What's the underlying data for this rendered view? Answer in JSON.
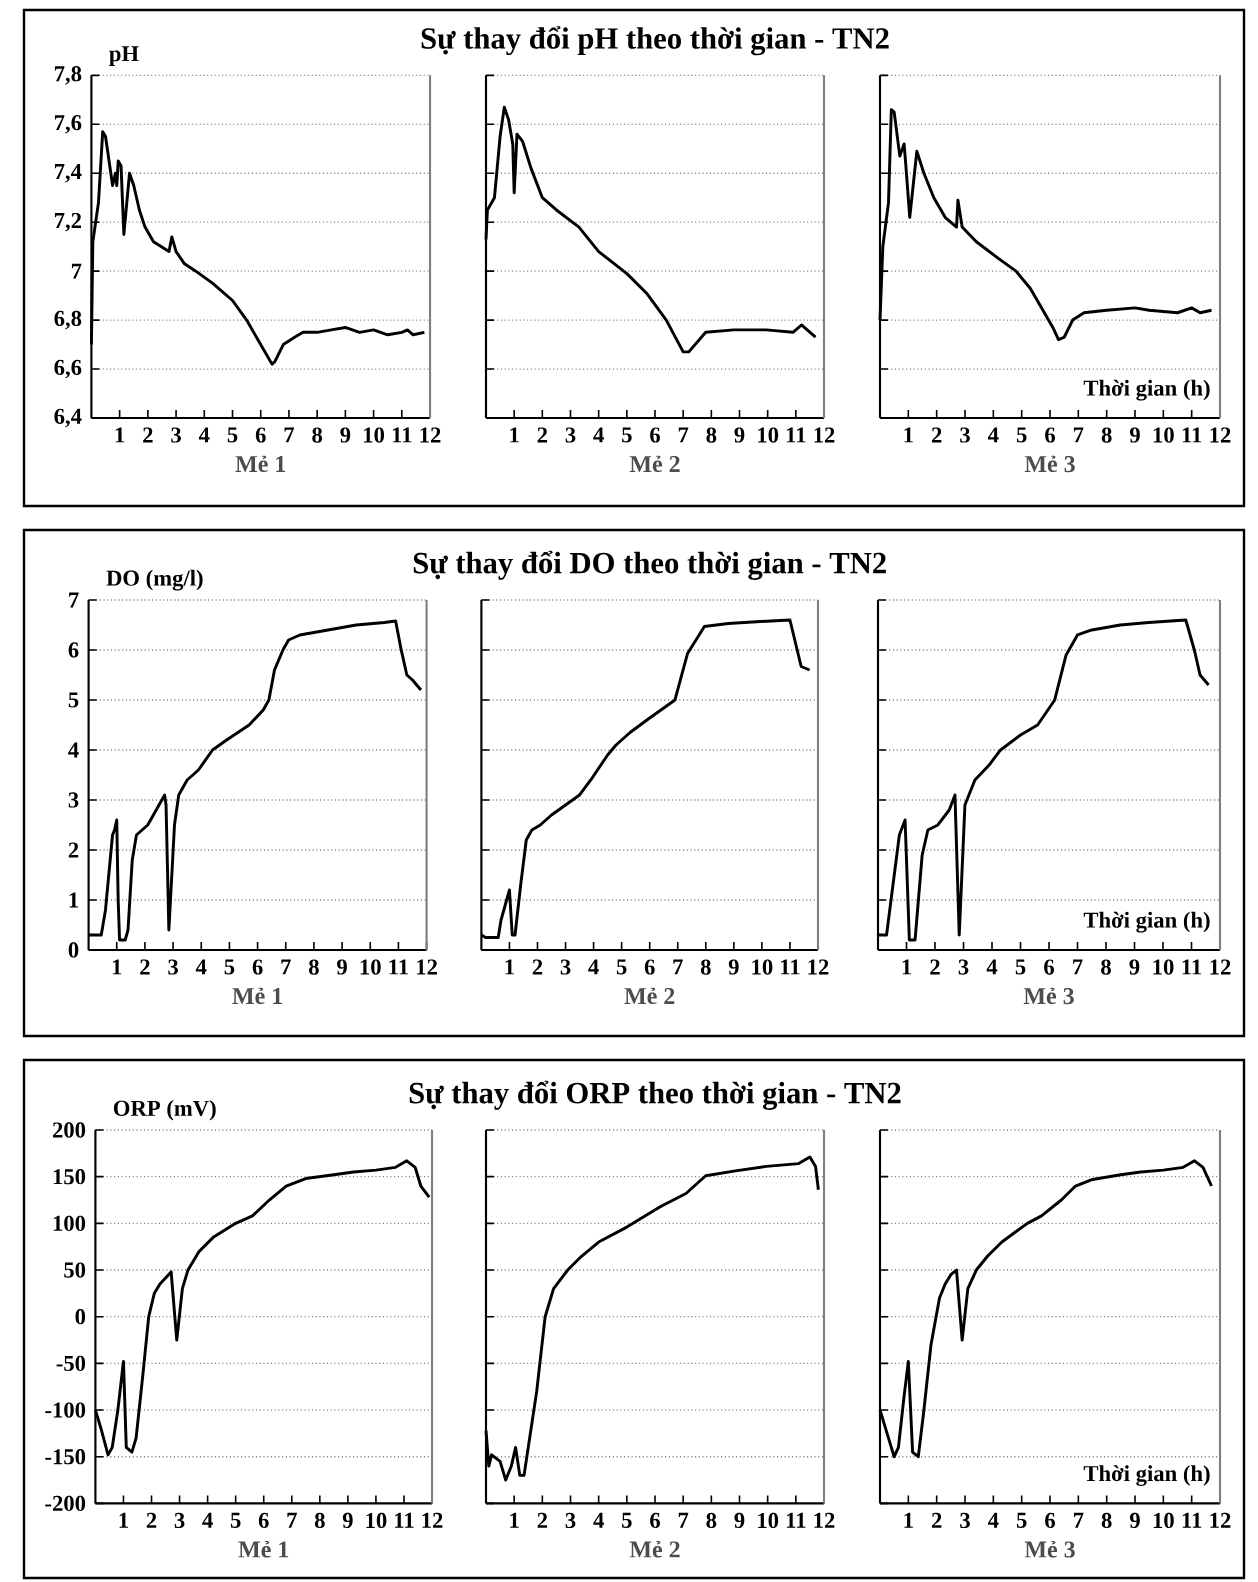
{
  "chart_data": [
    {
      "type": "line",
      "ylabel": "pH",
      "xlabel": "Mẻ 1",
      "color": "#000000",
      "grid": "y",
      "xlim": [
        0,
        12
      ],
      "ylim": [
        6.4,
        7.8
      ],
      "xticks": [
        1,
        2,
        3,
        4,
        5,
        6,
        7,
        8,
        9,
        10,
        11,
        12
      ],
      "yticks": [
        {
          "value": 6.4,
          "label": "6,4"
        },
        {
          "value": 6.6,
          "label": "6,6"
        },
        {
          "value": 6.8,
          "label": "6,8"
        },
        7,
        {
          "value": 7.2,
          "label": "7,2"
        },
        {
          "value": 7.4,
          "label": "7,4"
        },
        {
          "value": 7.6,
          "label": "7,6"
        },
        {
          "value": 7.8,
          "label": "7,8"
        }
      ],
      "ref_lines": [
        {
          "axis": "x",
          "value": 12,
          "color": "#808080"
        }
      ],
      "x": [
        0,
        0.05,
        0.25,
        0.4,
        0.5,
        0.75,
        0.85,
        0.9,
        0.95,
        1.05,
        1.15,
        1.35,
        1.5,
        1.7,
        1.9,
        2.2,
        2.75,
        2.85,
        3.0,
        3.3,
        3.7,
        4.3,
        5,
        5.5,
        5.9,
        6.2,
        6.4,
        6.5,
        6.8,
        7.2,
        7.5,
        8,
        8.5,
        9,
        9.5,
        10,
        10.5,
        11,
        11.2,
        11.4,
        11.8
      ],
      "values": [
        6.7,
        7.12,
        7.28,
        7.57,
        7.55,
        7.35,
        7.4,
        7.35,
        7.45,
        7.43,
        7.15,
        7.4,
        7.35,
        7.25,
        7.18,
        7.12,
        7.08,
        7.14,
        7.08,
        7.03,
        7.0,
        6.95,
        6.88,
        6.8,
        6.72,
        6.66,
        6.62,
        6.63,
        6.7,
        6.73,
        6.75,
        6.75,
        6.76,
        6.77,
        6.75,
        6.76,
        6.74,
        6.75,
        6.76,
        6.74,
        6.75
      ]
    },
    {
      "type": "line",
      "title": "Sự thay đổi pH theo thời gian - TN2",
      "xlabel": "Mẻ 2",
      "color": "#000000",
      "grid": "y",
      "tick_labels": "x",
      "xlim": [
        0,
        12
      ],
      "ylim": [
        6.4,
        7.8
      ],
      "xticks": [
        1,
        2,
        3,
        4,
        5,
        6,
        7,
        8,
        9,
        10,
        11,
        12
      ],
      "yticks": [
        6.4,
        6.6,
        6.8,
        7,
        7.2,
        7.4,
        7.6,
        7.8
      ],
      "ref_lines": [
        {
          "axis": "x",
          "value": 12,
          "color": "#808080"
        }
      ],
      "x": [
        0,
        0.05,
        0.3,
        0.5,
        0.65,
        0.8,
        0.95,
        1.0,
        1.1,
        1.3,
        1.6,
        2,
        2.5,
        3.3,
        4.0,
        5.0,
        5.7,
        6.4,
        7.0,
        7.2,
        7.8,
        8.8,
        9.95,
        10.9,
        11.2,
        11.7
      ],
      "values": [
        7.13,
        7.25,
        7.3,
        7.55,
        7.67,
        7.62,
        7.52,
        7.32,
        7.56,
        7.53,
        7.42,
        7.3,
        7.25,
        7.18,
        7.08,
        6.99,
        6.91,
        6.8,
        6.67,
        6.67,
        6.75,
        6.76,
        6.76,
        6.75,
        6.78,
        6.73
      ]
    },
    {
      "type": "line",
      "xlabel": "Mẻ 3",
      "annotations": [
        "Thời gian (h)"
      ],
      "color": "#000000",
      "grid": "y",
      "tick_labels": "x",
      "xlim": [
        0,
        12
      ],
      "ylim": [
        6.4,
        7.8
      ],
      "xticks": [
        1,
        2,
        3,
        4,
        5,
        6,
        7,
        8,
        9,
        10,
        11,
        12
      ],
      "yticks": [
        6.4,
        6.6,
        6.8,
        7,
        7.2,
        7.4,
        7.6,
        7.8
      ],
      "ref_lines": [
        {
          "axis": "x",
          "value": 12,
          "color": "#808080"
        }
      ],
      "x": [
        0,
        0.1,
        0.3,
        0.4,
        0.5,
        0.7,
        0.85,
        0.9,
        1.05,
        1.3,
        1.55,
        1.9,
        2.3,
        2.7,
        2.75,
        2.9,
        3.4,
        4.2,
        4.8,
        5.3,
        5.7,
        6.1,
        6.3,
        6.5,
        6.8,
        7.2,
        8,
        9,
        9.5,
        10.5,
        11,
        11.3,
        11.7
      ],
      "values": [
        6.8,
        7.1,
        7.28,
        7.66,
        7.65,
        7.47,
        7.52,
        7.45,
        7.22,
        7.49,
        7.4,
        7.3,
        7.22,
        7.18,
        7.29,
        7.18,
        7.12,
        7.05,
        7.0,
        6.93,
        6.85,
        6.77,
        6.72,
        6.73,
        6.8,
        6.83,
        6.84,
        6.85,
        6.84,
        6.83,
        6.85,
        6.83,
        6.84
      ]
    },
    {
      "type": "line",
      "ylabel": "DO (mg/l)",
      "xlabel": "Mẻ 1",
      "color": "#000000",
      "grid": "y",
      "xlim": [
        0,
        12
      ],
      "ylim": [
        0,
        7
      ],
      "xticks": [
        1,
        2,
        3,
        4,
        5,
        6,
        7,
        8,
        9,
        10,
        11,
        12
      ],
      "yticks": [
        0,
        1,
        2,
        3,
        4,
        5,
        6,
        7
      ],
      "ref_lines": [
        {
          "axis": "x",
          "value": 12,
          "color": "#808080"
        }
      ],
      "x": [
        0,
        0.45,
        0.6,
        0.85,
        0.92,
        1.0,
        1.05,
        1.1,
        1.3,
        1.4,
        1.55,
        1.7,
        1.9,
        2.1,
        2.3,
        2.5,
        2.7,
        2.75,
        2.85,
        3.05,
        3.2,
        3.5,
        3.9,
        4.4,
        4.9,
        5.3,
        5.7,
        6.2,
        6.4,
        6.6,
        6.9,
        7.1,
        7.5,
        8.5,
        9.5,
        10.5,
        10.9,
        11.1,
        11.3,
        11.5,
        11.8
      ],
      "values": [
        0.3,
        0.3,
        0.8,
        2.3,
        2.4,
        2.6,
        1.0,
        0.2,
        0.2,
        0.4,
        1.8,
        2.3,
        2.4,
        2.5,
        2.7,
        2.9,
        3.1,
        2.9,
        0.4,
        2.5,
        3.1,
        3.4,
        3.6,
        4.0,
        4.2,
        4.35,
        4.5,
        4.8,
        5.0,
        5.6,
        6.0,
        6.2,
        6.3,
        6.4,
        6.5,
        6.55,
        6.58,
        6.0,
        5.5,
        5.4,
        5.2
      ]
    },
    {
      "type": "line",
      "title": "Sự thay đổi DO theo thời gian - TN2",
      "xlabel": "Mẻ 2",
      "color": "#000000",
      "grid": "y",
      "tick_labels": "x",
      "xlim": [
        0,
        12
      ],
      "ylim": [
        0,
        7
      ],
      "xticks": [
        1,
        2,
        3,
        4,
        5,
        6,
        7,
        8,
        9,
        10,
        11,
        12
      ],
      "yticks": [
        0,
        1,
        2,
        3,
        4,
        5,
        6,
        7
      ],
      "ref_lines": [
        {
          "axis": "x",
          "value": 12,
          "color": "#808080"
        }
      ],
      "x": [
        0,
        0.15,
        0.6,
        0.7,
        1.0,
        1.1,
        1.2,
        1.4,
        1.6,
        1.8,
        2.1,
        2.5,
        3,
        3.5,
        3.9,
        4.5,
        4.8,
        5.3,
        5.9,
        6.9,
        7.35,
        7.95,
        8.8,
        9.95,
        11.0,
        11.4,
        11.7
      ],
      "values": [
        0.3,
        0.25,
        0.25,
        0.6,
        1.2,
        0.3,
        0.3,
        1.3,
        2.2,
        2.4,
        2.5,
        2.7,
        2.9,
        3.1,
        3.4,
        3.9,
        4.1,
        4.35,
        4.6,
        5.0,
        5.93,
        6.47,
        6.53,
        6.57,
        6.6,
        5.67,
        5.6
      ]
    },
    {
      "type": "line",
      "xlabel": "Mẻ 3",
      "annotations": [
        "Thời gian (h)"
      ],
      "color": "#000000",
      "grid": "y",
      "tick_labels": "x",
      "xlim": [
        0,
        12
      ],
      "ylim": [
        0,
        7
      ],
      "xticks": [
        1,
        2,
        3,
        4,
        5,
        6,
        7,
        8,
        9,
        10,
        11,
        12
      ],
      "yticks": [
        0,
        1,
        2,
        3,
        4,
        5,
        6,
        7
      ],
      "ref_lines": [
        {
          "axis": "x",
          "value": 12,
          "color": "#808080"
        }
      ],
      "x": [
        0,
        0.3,
        0.75,
        0.95,
        1.1,
        1.3,
        1.55,
        1.75,
        2.1,
        2.5,
        2.7,
        2.85,
        3.05,
        3.4,
        3.9,
        4.3,
        5.0,
        5.6,
        6.2,
        6.6,
        7.0,
        7.5,
        8.5,
        9.5,
        10.8,
        11.1,
        11.3,
        11.6
      ],
      "values": [
        0.3,
        0.3,
        2.3,
        2.6,
        0.2,
        0.2,
        1.9,
        2.4,
        2.5,
        2.8,
        3.1,
        0.3,
        2.9,
        3.4,
        3.7,
        4.0,
        4.3,
        4.5,
        5.0,
        5.9,
        6.3,
        6.4,
        6.5,
        6.55,
        6.6,
        6.0,
        5.5,
        5.3
      ]
    },
    {
      "type": "line",
      "ylabel": "ORP (mV)",
      "xlabel": "Mẻ 1",
      "color": "#000000",
      "grid": "y",
      "xlim": [
        0,
        12
      ],
      "ylim": [
        -200,
        200
      ],
      "xticks": [
        1,
        2,
        3,
        4,
        5,
        6,
        7,
        8,
        9,
        10,
        11,
        12
      ],
      "yticks": [
        -200,
        -150,
        -100,
        -50,
        0,
        50,
        100,
        150,
        200
      ],
      "ref_lines": [
        {
          "axis": "x",
          "value": 12,
          "color": "#808080"
        }
      ],
      "x": [
        0,
        0.2,
        0.45,
        0.6,
        0.8,
        1.0,
        1.1,
        1.3,
        1.45,
        1.7,
        1.9,
        2.1,
        2.3,
        2.7,
        2.9,
        3.1,
        3.3,
        3.7,
        4.2,
        5.0,
        5.6,
        6.2,
        6.8,
        7.5,
        8.5,
        9.2,
        10,
        10.7,
        11.1,
        11.4,
        11.6,
        11.9
      ],
      "values": [
        -100,
        -120,
        -148,
        -140,
        -100,
        -48,
        -140,
        -145,
        -130,
        -60,
        0,
        25,
        35,
        48,
        -25,
        30,
        50,
        70,
        85,
        100,
        108,
        125,
        140,
        148,
        152,
        155,
        157,
        160,
        167,
        160,
        140,
        128
      ]
    },
    {
      "type": "line",
      "title": "Sự thay đổi ORP theo thời gian - TN2",
      "xlabel": "Mẻ 2",
      "color": "#000000",
      "grid": "y",
      "tick_labels": "x",
      "xlim": [
        0,
        12
      ],
      "ylim": [
        -200,
        200
      ],
      "xticks": [
        1,
        2,
        3,
        4,
        5,
        6,
        7,
        8,
        9,
        10,
        11,
        12
      ],
      "yticks": [
        -200,
        -150,
        -100,
        -50,
        0,
        50,
        100,
        150,
        200
      ],
      "ref_lines": [
        {
          "axis": "x",
          "value": 12,
          "color": "#808080"
        }
      ],
      "x": [
        0,
        0.1,
        0.2,
        0.5,
        0.7,
        0.9,
        1.05,
        1.2,
        1.35,
        1.6,
        1.8,
        2.1,
        2.4,
        2.9,
        3.4,
        4.0,
        5.0,
        6.2,
        7.1,
        7.8,
        8.8,
        9.95,
        11.1,
        11.5,
        11.7,
        11.8
      ],
      "values": [
        -122,
        -160,
        -148,
        -155,
        -175,
        -160,
        -140,
        -170,
        -170,
        -120,
        -80,
        0,
        30,
        50,
        65,
        80,
        96,
        118,
        132,
        151,
        156,
        161,
        164,
        171,
        161,
        136
      ]
    },
    {
      "type": "line",
      "xlabel": "Mẻ 3",
      "annotations": [
        "Thời gian (h)"
      ],
      "color": "#000000",
      "grid": "y",
      "tick_labels": "x",
      "xlim": [
        0,
        12
      ],
      "ylim": [
        -200,
        200
      ],
      "xticks": [
        1,
        2,
        3,
        4,
        5,
        6,
        7,
        8,
        9,
        10,
        11,
        12
      ],
      "yticks": [
        -200,
        -150,
        -100,
        -50,
        0,
        50,
        100,
        150,
        200
      ],
      "ref_lines": [
        {
          "axis": "x",
          "value": 12,
          "color": "#808080"
        }
      ],
      "x": [
        0,
        0.3,
        0.5,
        0.65,
        0.85,
        1.0,
        1.15,
        1.35,
        1.55,
        1.8,
        2.1,
        2.3,
        2.5,
        2.7,
        2.9,
        3.1,
        3.4,
        3.8,
        4.3,
        5.2,
        5.7,
        6.4,
        6.9,
        7.5,
        8.5,
        9.2,
        10,
        10.7,
        11.1,
        11.4,
        11.7
      ],
      "values": [
        -100,
        -130,
        -150,
        -140,
        -85,
        -48,
        -145,
        -150,
        -100,
        -30,
        20,
        35,
        45,
        50,
        -25,
        30,
        50,
        65,
        80,
        100,
        108,
        125,
        140,
        147,
        152,
        155,
        157,
        160,
        167,
        160,
        140
      ]
    }
  ]
}
